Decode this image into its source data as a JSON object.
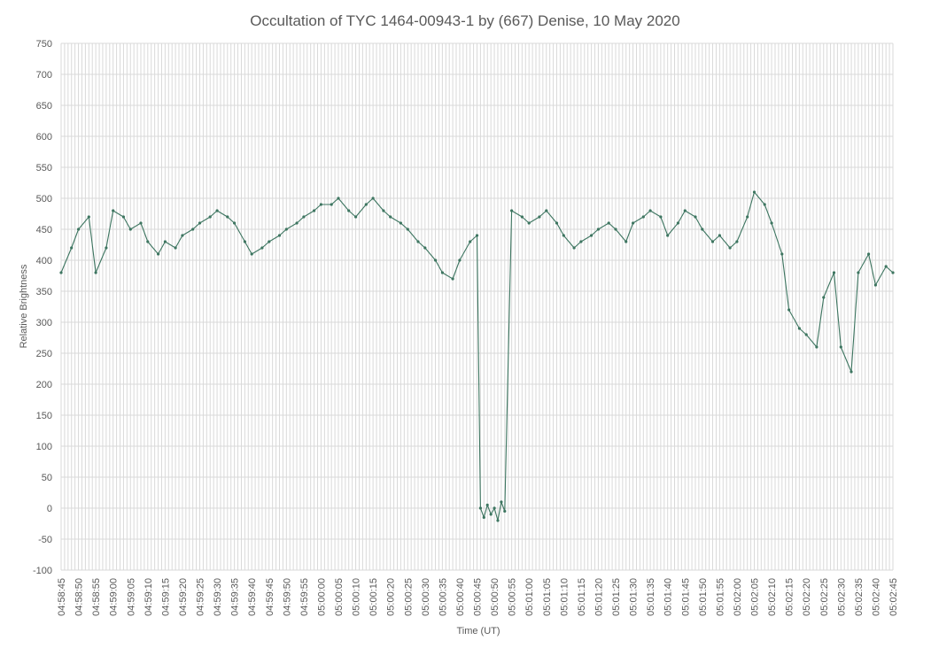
{
  "chart_data": {
    "type": "line",
    "title": "Occultation of TYC 1464-00943-1 by (667) Denise, 10 May 2020",
    "xlabel": "Time (UT)",
    "ylabel": "Relative Brightness",
    "ylim": [
      -100,
      750
    ],
    "yticks": [
      -100,
      -50,
      0,
      50,
      100,
      150,
      200,
      250,
      300,
      350,
      400,
      450,
      500,
      550,
      600,
      650,
      700,
      750
    ],
    "xlim": [
      "04:58:45",
      "05:02:45"
    ],
    "xticks": [
      "04:58:45",
      "04:58:50",
      "04:58:55",
      "04:59:00",
      "04:59:05",
      "04:59:10",
      "04:59:15",
      "04:59:20",
      "04:59:25",
      "04:59:30",
      "04:59:35",
      "04:59:40",
      "04:59:45",
      "04:59:50",
      "04:59:55",
      "05:00:00",
      "05:00:05",
      "05:00:10",
      "05:00:15",
      "05:00:20",
      "05:00:25",
      "05:00:30",
      "05:00:35",
      "05:00:40",
      "05:00:45",
      "05:00:50",
      "05:00:55",
      "05:01:00",
      "05:01:05",
      "05:01:10",
      "05:01:15",
      "05:01:20",
      "05:01:25",
      "05:01:30",
      "05:01:35",
      "05:01:40",
      "05:01:45",
      "05:01:50",
      "05:01:55",
      "05:02:00",
      "05:02:05",
      "05:02:10",
      "05:02:15",
      "05:02:20",
      "05:02:25",
      "05:02:30",
      "05:02:35",
      "05:02:40",
      "05:02:45"
    ],
    "grid": true,
    "legend": "none",
    "markers": true,
    "color": "#3d7560",
    "series": [
      {
        "x": [
          "04:58:45",
          "04:58:48",
          "04:58:50",
          "04:58:53",
          "04:58:55",
          "04:58:58",
          "04:59:00",
          "04:59:03",
          "04:59:05",
          "04:59:08",
          "04:59:10",
          "04:59:13",
          "04:59:15",
          "04:59:18",
          "04:59:20",
          "04:59:23",
          "04:59:25",
          "04:59:28",
          "04:59:30",
          "04:59:33",
          "04:59:35",
          "04:59:38",
          "04:59:40",
          "04:59:43",
          "04:59:45",
          "04:59:48",
          "04:59:50",
          "04:59:53",
          "04:59:55",
          "04:59:58",
          "05:00:00",
          "05:00:03",
          "05:00:05",
          "05:00:08",
          "05:00:10",
          "05:00:13",
          "05:00:15",
          "05:00:18",
          "05:00:20",
          "05:00:23",
          "05:00:25",
          "05:00:28",
          "05:00:30",
          "05:00:33",
          "05:00:35",
          "05:00:38",
          "05:00:40",
          "05:00:43",
          "05:00:45",
          "05:00:46",
          "05:00:47",
          "05:00:48",
          "05:00:49",
          "05:00:50",
          "05:00:51",
          "05:00:52",
          "05:00:53",
          "05:00:55",
          "05:00:58",
          "05:01:00",
          "05:01:03",
          "05:01:05",
          "05:01:08",
          "05:01:10",
          "05:01:13",
          "05:01:15",
          "05:01:18",
          "05:01:20",
          "05:01:23",
          "05:01:25",
          "05:01:28",
          "05:01:30",
          "05:01:33",
          "05:01:35",
          "05:01:38",
          "05:01:40",
          "05:01:43",
          "05:01:45",
          "05:01:48",
          "05:01:50",
          "05:01:53",
          "05:01:55",
          "05:01:58",
          "05:02:00",
          "05:02:03",
          "05:02:05",
          "05:02:08",
          "05:02:10",
          "05:02:13",
          "05:02:15",
          "05:02:18",
          "05:02:20",
          "05:02:23",
          "05:02:25",
          "05:02:28",
          "05:02:30",
          "05:02:33",
          "05:02:35",
          "05:02:38",
          "05:02:40",
          "05:02:43",
          "05:02:45"
        ],
        "y": [
          380,
          420,
          450,
          470,
          380,
          420,
          480,
          470,
          450,
          460,
          430,
          410,
          430,
          420,
          440,
          450,
          460,
          470,
          480,
          470,
          460,
          430,
          410,
          420,
          430,
          440,
          450,
          460,
          470,
          480,
          490,
          490,
          500,
          480,
          470,
          490,
          500,
          480,
          470,
          460,
          450,
          430,
          420,
          400,
          380,
          370,
          400,
          430,
          440,
          0,
          -15,
          5,
          -10,
          0,
          -20,
          10,
          -5,
          480,
          470,
          460,
          470,
          480,
          460,
          440,
          420,
          430,
          440,
          450,
          460,
          450,
          430,
          460,
          470,
          480,
          470,
          440,
          460,
          480,
          470,
          450,
          430,
          440,
          420,
          430,
          470,
          510,
          490,
          460,
          410,
          320,
          290,
          280,
          260,
          340,
          380,
          260,
          220,
          380,
          410,
          360,
          390,
          380
        ]
      }
    ]
  }
}
